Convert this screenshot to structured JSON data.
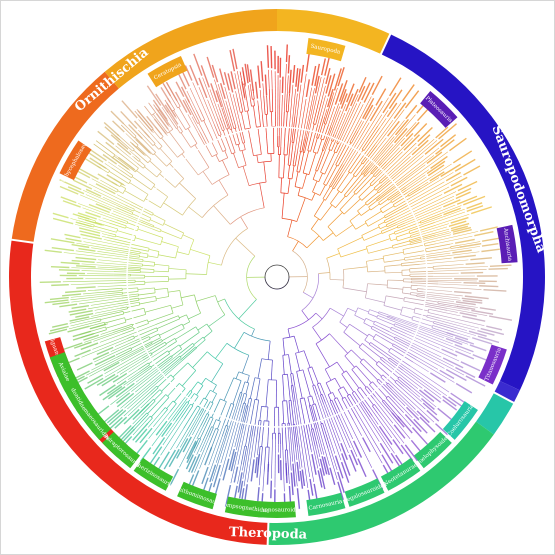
{
  "major_clades": [
    {
      "name": "Ornithischia",
      "color": "#e0241b"
    },
    {
      "name": "Sauropodomorpha",
      "color": "#2a14c9"
    },
    {
      "name": "Theropoda",
      "color": "#3cbf2a"
    }
  ],
  "ring_segments": [
    {
      "color": "#e8281c",
      "start": 182,
      "end": 278
    },
    {
      "color": "#ee6a1e",
      "start": 278,
      "end": 320
    },
    {
      "color": "#f0a41c",
      "start": 320,
      "end": 360
    },
    {
      "color": "#f3b521",
      "start": 0,
      "end": 25
    },
    {
      "color": "#2614c4",
      "start": 25,
      "end": 115
    },
    {
      "color": "#3a2bd0",
      "start": 115,
      "end": 118
    },
    {
      "color": "#27c6a8",
      "start": 118,
      "end": 126
    },
    {
      "color": "#2ec970",
      "start": 126,
      "end": 182
    }
  ],
  "inner_labels": [
    {
      "text": "Iguanodontia",
      "angle": 250,
      "color": "#ffffff",
      "bg": "#e8281c"
    },
    {
      "text": "Ankylosauridae",
      "angle": 226,
      "color": "#ffffff",
      "bg": "#e8281c"
    },
    {
      "text": "Pachycephalosauria",
      "angle": 300,
      "color": "#ffffff",
      "bg": "#ee6a1e"
    },
    {
      "text": "Ceratopsia",
      "angle": 332,
      "color": "#ffffff",
      "bg": "#f0a41c"
    },
    {
      "text": "Sauropoda",
      "angle": 12,
      "color": "#ffffff",
      "bg": "#f3b521"
    },
    {
      "text": "Plateosauria",
      "angle": 44,
      "color": "#ffffff",
      "bg": "#5a1db5"
    },
    {
      "text": "Anchisauria",
      "angle": 82,
      "color": "#ffffff",
      "bg": "#5a1db5"
    },
    {
      "text": "Titanosauria",
      "angle": 112,
      "color": "#ffffff",
      "bg": "#7a2fc9"
    },
    {
      "text": "Coelurosauria",
      "angle": 128,
      "color": "#ffffff",
      "bg": "#27c6a8"
    },
    {
      "text": "Coelophysoidea",
      "angle": 138,
      "color": "#ffffff",
      "bg": "#2ec970"
    },
    {
      "text": "Neotetanurae",
      "angle": 148,
      "color": "#ffffff",
      "bg": "#2ec970"
    },
    {
      "text": "Megalosauroidea",
      "angle": 158,
      "color": "#ffffff",
      "bg": "#2ec970"
    },
    {
      "text": "Carnosauria",
      "angle": 168,
      "color": "#ffffff",
      "bg": "#2ec970"
    },
    {
      "text": "Tyrannosauroidea",
      "angle": 180,
      "color": "#ffffff",
      "bg": "#3cbf2a"
    },
    {
      "text": "Compsognathidae",
      "angle": 188,
      "color": "#ffffff",
      "bg": "#3cbf2a"
    },
    {
      "text": "Ornithomimosauria",
      "angle": 200,
      "color": "#ffffff",
      "bg": "#3cbf2a"
    },
    {
      "text": "Therizinosauria",
      "angle": 212,
      "color": "#ffffff",
      "bg": "#3cbf2a"
    },
    {
      "text": "Oviraptorosauria",
      "angle": 222,
      "color": "#ffffff",
      "bg": "#3cbf2a"
    },
    {
      "text": "Dromaeosauridae",
      "angle": 232,
      "color": "#ffffff",
      "bg": "#3cbf2a"
    },
    {
      "text": "Troodontidae",
      "angle": 240,
      "color": "#ffffff",
      "bg": "#3cbf2a"
    },
    {
      "text": "Avialae",
      "angle": 246,
      "color": "#ffffff",
      "bg": "#3cbf2a"
    }
  ],
  "tree": {
    "center_color": "#444444",
    "gradient_stops": [
      "#e8281c",
      "#f08a2a",
      "#f0c24a",
      "#b9a0d8",
      "#8a4fd1",
      "#5a3cc8",
      "#3ec9a8",
      "#8fcf6a",
      "#cfe36a",
      "#e0a890"
    ]
  }
}
